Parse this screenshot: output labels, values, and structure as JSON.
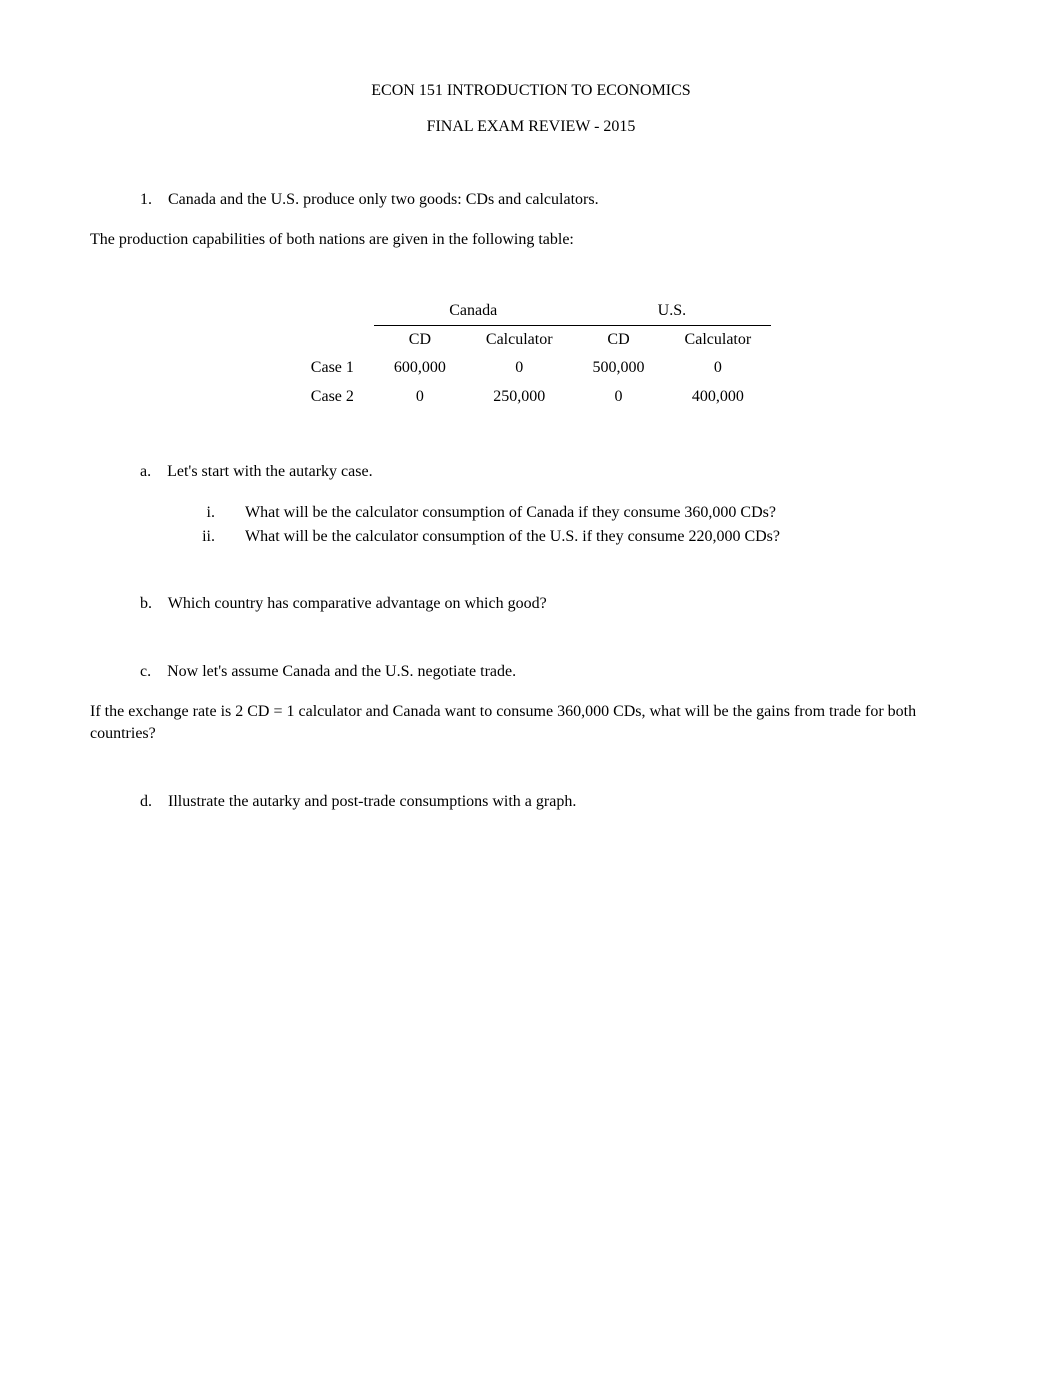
{
  "header": {
    "title": "ECON 151 INTRODUCTION TO ECONOMICS",
    "subtitle": "FINAL EXAM REVIEW - 2015"
  },
  "q1": {
    "number": "1.",
    "text": "Canada and the U.S. produce only two goods: CDs and calculators.",
    "intro": "The production capabilities of both nations are given in the following table:"
  },
  "table": {
    "country_headers": [
      "Canada",
      "U.S."
    ],
    "sub_headers": [
      "CD",
      "Calculator",
      "CD",
      "Calculator"
    ],
    "rows": [
      {
        "label": "Case 1",
        "cells": [
          "600,000",
          "0",
          "500,000",
          "0"
        ]
      },
      {
        "label": "Case 2",
        "cells": [
          "0",
          "250,000",
          "0",
          "400,000"
        ]
      }
    ]
  },
  "parts": {
    "a": {
      "label": "a.",
      "text": "Let's start with the autarky case.",
      "sub": [
        {
          "label": "i.",
          "text": "What will be the calculator consumption of Canada if they consume 360,000 CDs?"
        },
        {
          "label": "ii.",
          "text": "What will be the calculator consumption of the U.S. if they consume 220,000 CDs?"
        }
      ]
    },
    "b": {
      "label": "b.",
      "text": "Which country has comparative advantage on which good?"
    },
    "c": {
      "label": "c.",
      "text": "Now let's assume Canada and the U.S. negotiate trade.",
      "followup": "If the exchange rate is 2 CD = 1 calculator and Canada want to consume 360,000 CDs, what will be the gains from trade for both countries?"
    },
    "d": {
      "label": "d.",
      "text": "Illustrate the autarky and post-trade consumptions with a graph."
    }
  }
}
